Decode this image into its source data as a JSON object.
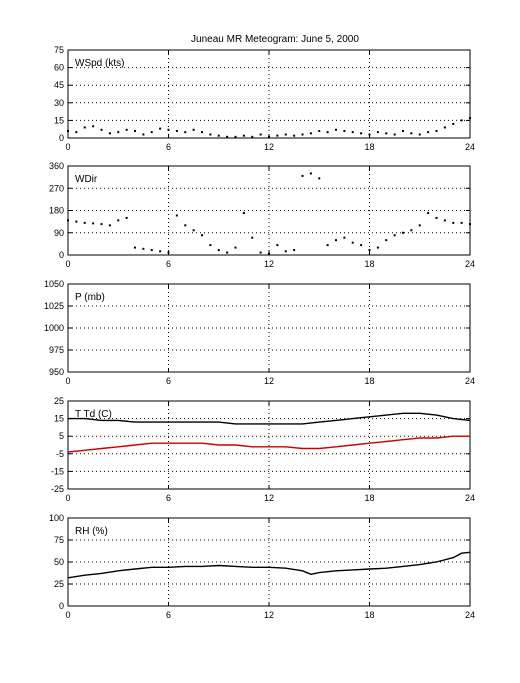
{
  "figure": {
    "title": "Juneau MR Meteogram:       June  5, 2000"
  },
  "chart_data": [
    {
      "type": "scatter",
      "label": "WSpd (kts)",
      "xlim": [
        0,
        24
      ],
      "xticks": [
        0,
        6,
        12,
        18,
        24
      ],
      "ylim": [
        0,
        75
      ],
      "yticks": [
        0,
        15,
        30,
        45,
        60,
        75
      ],
      "grid": true,
      "series": [
        {
          "color": "#000000",
          "x": [
            0,
            0.5,
            1,
            1.5,
            2,
            2.5,
            3,
            3.5,
            4,
            4.5,
            5,
            5.5,
            6,
            6.5,
            7,
            7.5,
            8,
            8.5,
            9,
            9.5,
            10,
            10.5,
            11,
            11.5,
            12,
            12.5,
            13,
            13.5,
            14,
            14.5,
            15,
            15.5,
            16,
            16.5,
            17,
            17.5,
            18,
            18.5,
            19,
            19.5,
            20,
            20.5,
            21,
            21.5,
            22,
            22.5,
            23,
            23.5,
            24
          ],
          "y": [
            6,
            5,
            9,
            10,
            7,
            4,
            5,
            7,
            6,
            3,
            5,
            8,
            7,
            6,
            5,
            7,
            5,
            3,
            2,
            1,
            1,
            2,
            1,
            3,
            1,
            2,
            3,
            2,
            3,
            4,
            6,
            5,
            7,
            6,
            5,
            4,
            3,
            5,
            4,
            3,
            6,
            4,
            3,
            5,
            6,
            9,
            12,
            15,
            17
          ]
        }
      ]
    },
    {
      "type": "scatter",
      "label": "WDir",
      "xlim": [
        0,
        24
      ],
      "xticks": [
        0,
        6,
        12,
        18,
        24
      ],
      "ylim": [
        0,
        360
      ],
      "yticks": [
        0,
        90,
        180,
        270,
        360
      ],
      "grid": true,
      "series": [
        {
          "color": "#000000",
          "x": [
            0,
            0.5,
            1,
            1.5,
            2,
            2.5,
            3,
            3.5,
            4,
            4.5,
            5,
            5.5,
            6,
            6.5,
            7,
            7.5,
            8,
            8.5,
            9,
            9.5,
            10,
            10.5,
            11,
            11.5,
            12,
            12.5,
            13,
            13.5,
            14,
            14.5,
            15,
            15.5,
            16,
            16.5,
            17,
            17.5,
            18,
            18.5,
            19,
            19.5,
            20,
            20.5,
            21,
            21.5,
            22,
            22.5,
            23,
            23.5,
            24
          ],
          "y": [
            140,
            135,
            130,
            128,
            125,
            120,
            140,
            150,
            30,
            25,
            20,
            15,
            10,
            160,
            120,
            100,
            80,
            40,
            20,
            10,
            30,
            170,
            70,
            10,
            5,
            40,
            15,
            20,
            320,
            330,
            310,
            40,
            60,
            70,
            50,
            40,
            20,
            30,
            60,
            80,
            90,
            100,
            120,
            170,
            150,
            140,
            130,
            130,
            125
          ]
        }
      ]
    },
    {
      "type": "scatter",
      "label": "P (mb)",
      "xlim": [
        0,
        24
      ],
      "xticks": [
        0,
        6,
        12,
        18,
        24
      ],
      "ylim": [
        950,
        1050
      ],
      "yticks": [
        950,
        975,
        1000,
        1025,
        1050
      ],
      "grid": true,
      "series": []
    },
    {
      "type": "line",
      "label": "T  Td (C)",
      "xlim": [
        0,
        24
      ],
      "xticks": [
        0,
        6,
        12,
        18,
        24
      ],
      "ylim": [
        -25,
        25
      ],
      "yticks": [
        -25,
        -15,
        -5,
        5,
        15,
        25
      ],
      "grid": true,
      "series": [
        {
          "color": "#000000",
          "x": [
            0,
            1,
            2,
            3,
            4,
            5,
            6,
            7,
            8,
            9,
            10,
            11,
            12,
            13,
            14,
            15,
            16,
            17,
            18,
            19,
            20,
            21,
            22,
            23,
            24
          ],
          "y": [
            15,
            15,
            14,
            14,
            13,
            13,
            13,
            13,
            13,
            13,
            12,
            12,
            12,
            12,
            12,
            13,
            14,
            15,
            16,
            17,
            18,
            18,
            17,
            15,
            14
          ]
        },
        {
          "color": "#cc0000",
          "x": [
            0,
            1,
            2,
            3,
            4,
            5,
            6,
            7,
            8,
            9,
            10,
            11,
            12,
            13,
            14,
            15,
            16,
            17,
            18,
            19,
            20,
            21,
            22,
            23,
            24
          ],
          "y": [
            -4,
            -3,
            -2,
            -1,
            0,
            1,
            1,
            1,
            1,
            0,
            0,
            -1,
            -1,
            -1,
            -2,
            -2,
            -1,
            0,
            1,
            2,
            3,
            4,
            4,
            5,
            5
          ]
        }
      ]
    },
    {
      "type": "line",
      "label": "RH (%)",
      "xlim": [
        0,
        24
      ],
      "xticks": [
        0,
        6,
        12,
        18,
        24
      ],
      "ylim": [
        0,
        100
      ],
      "yticks": [
        0,
        25,
        50,
        75,
        100
      ],
      "grid": true,
      "series": [
        {
          "color": "#000000",
          "x": [
            0,
            1,
            2,
            3,
            4,
            5,
            6,
            7,
            8,
            9,
            10,
            11,
            12,
            13,
            14,
            14.5,
            15,
            16,
            17,
            18,
            19,
            20,
            21,
            22,
            23,
            23.5,
            24
          ],
          "y": [
            32,
            35,
            37,
            40,
            42,
            44,
            44,
            45,
            45,
            46,
            45,
            44,
            44,
            43,
            40,
            36,
            38,
            40,
            41,
            42,
            43,
            45,
            47,
            50,
            55,
            60,
            61
          ]
        }
      ]
    }
  ]
}
